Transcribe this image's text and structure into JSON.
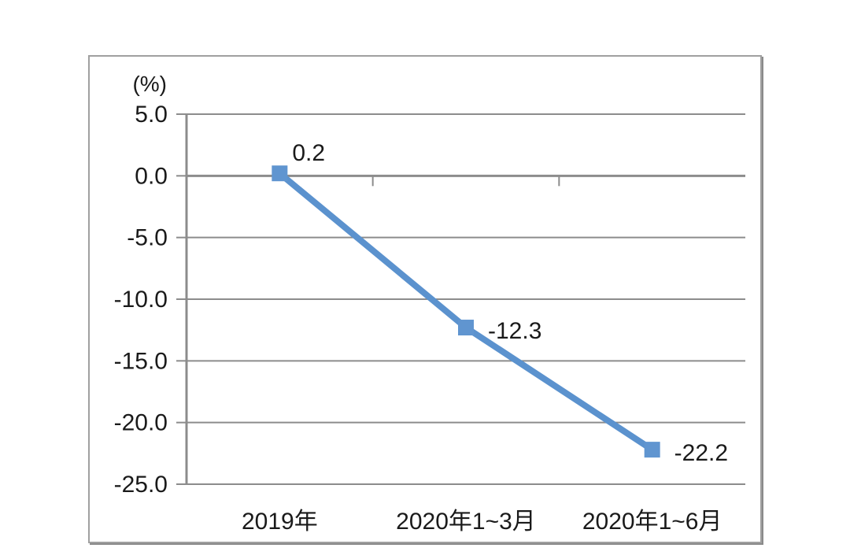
{
  "chart_data": {
    "type": "line",
    "title": "",
    "unit_label": "(%)",
    "xlabel": "",
    "ylabel": "(%)",
    "categories": [
      "2019年",
      "2020年1~3月",
      "2020年1~6月"
    ],
    "values": [
      0.2,
      -12.3,
      -22.2
    ],
    "data_labels": [
      "0.2",
      "-12.3",
      "-22.2"
    ],
    "ytick_values": [
      5.0,
      0.0,
      -5.0,
      -10.0,
      -15.0,
      -20.0,
      -25.0
    ],
    "ytick_labels": [
      "5.0",
      "0.0",
      "-5.0",
      "-10.0",
      "-15.0",
      "-20.0",
      "-25.0"
    ],
    "ylim": [
      -25,
      5
    ],
    "grid": true,
    "legend": "none",
    "marker": "square",
    "label_placement": [
      "above-right",
      "right",
      "right"
    ],
    "colors": {
      "line": "#5b92ce",
      "marker": "#6095d0",
      "grid": "#8c8c8c",
      "axis": "#8c8c8c",
      "text": "#1a1a1a",
      "frame_border": "#a0a0a0"
    }
  }
}
